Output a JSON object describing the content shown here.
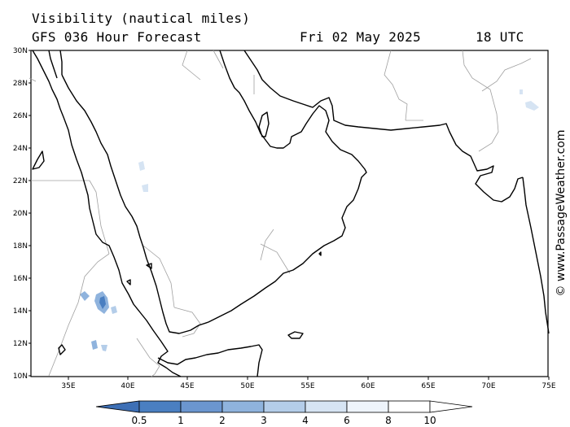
{
  "header": {
    "title": "Visibility (nautical miles)",
    "model": "GFS 036 Hour Forecast",
    "date": "Fri 02 May 2025",
    "time": "18 UTC"
  },
  "credit": "© www.PassageWeather.com",
  "colors": {
    "coast": "#000000",
    "border": "#a0a0a0",
    "frame": "#000000",
    "vis_low": "#4a7fc1",
    "vis_mid": "#8fb3dd",
    "vis_high": "#d6e4f3"
  },
  "axes": {
    "lat_labels": [
      "30N",
      "28N",
      "26N",
      "24N",
      "22N",
      "20N",
      "18N",
      "16N",
      "14N",
      "12N",
      "10N"
    ],
    "lon_labels": [
      "35E",
      "40E",
      "45E",
      "50E",
      "55E",
      "60E",
      "65E",
      "70E",
      "75E"
    ]
  },
  "colorbar": {
    "labels": [
      "0.5",
      "1",
      "2",
      "3",
      "4",
      "6",
      "8",
      "10"
    ],
    "colors": [
      "#3d6fb5",
      "#4a7fc1",
      "#6b96cf",
      "#8fb3dd",
      "#b4cde9",
      "#d6e4f3",
      "#eef4fb",
      "#ffffff",
      "#ffffff"
    ]
  }
}
